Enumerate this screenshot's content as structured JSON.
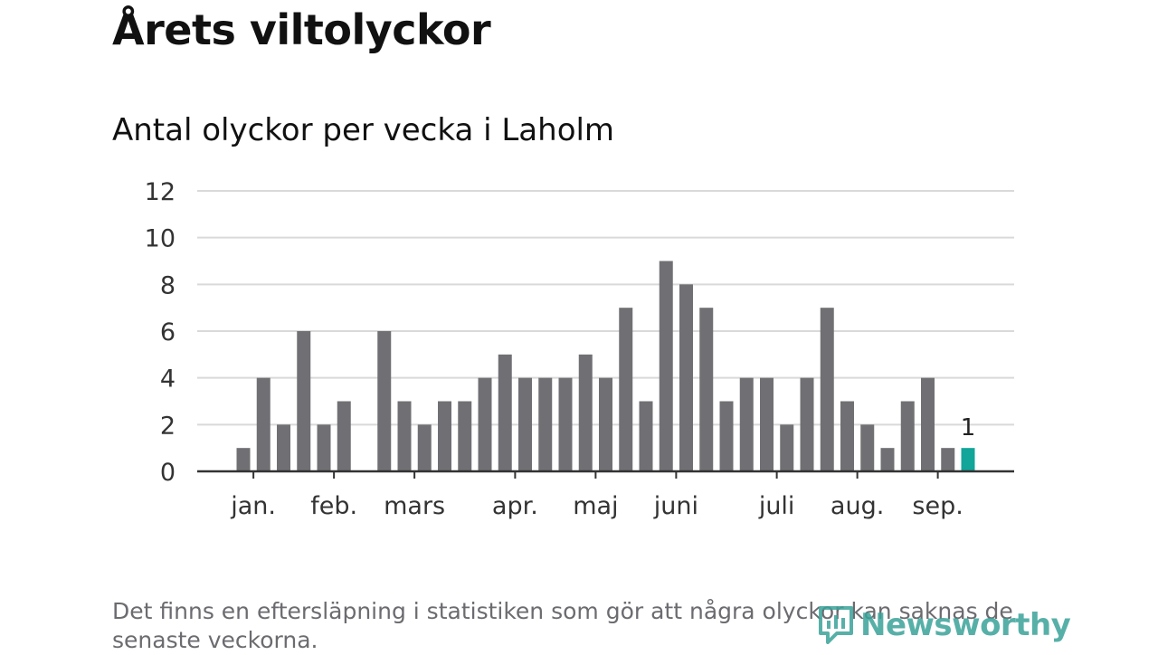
{
  "header": {
    "title": "Årets viltolyckor",
    "subtitle": "Antal olyckor per vecka i Laholm"
  },
  "footer": {
    "note": "Det finns en eftersläpning i statistiken som gör att några olyckor kan saknas de senaste veckorna.",
    "logo_text": "Newsworthy"
  },
  "colors": {
    "bar": "#707074",
    "highlight": "#12a59a",
    "grid": "#d9d9d9",
    "axis": "#333333"
  },
  "chart_data": {
    "type": "bar",
    "values": [
      1,
      4,
      2,
      6,
      2,
      3,
      0,
      6,
      3,
      2,
      3,
      3,
      4,
      5,
      4,
      4,
      4,
      5,
      4,
      7,
      3,
      9,
      8,
      7,
      3,
      4,
      4,
      2,
      4,
      7,
      3,
      2,
      1,
      3,
      4,
      1,
      1
    ],
    "highlight_last": true,
    "highlight_label": "1",
    "y_ticks": [
      0,
      2,
      4,
      6,
      8,
      10,
      12
    ],
    "ylim": [
      0,
      12
    ],
    "month_labels": [
      {
        "label": "jan.",
        "week": 0.5
      },
      {
        "label": "feb.",
        "week": 4.5
      },
      {
        "label": "mars",
        "week": 8.5
      },
      {
        "label": "apr.",
        "week": 13.5
      },
      {
        "label": "maj",
        "week": 17.5
      },
      {
        "label": "juni",
        "week": 21.5
      },
      {
        "label": "juli",
        "week": 26.5
      },
      {
        "label": "aug.",
        "week": 30.5
      },
      {
        "label": "sep.",
        "week": 34.5
      }
    ],
    "grid": true,
    "legend": "none"
  }
}
